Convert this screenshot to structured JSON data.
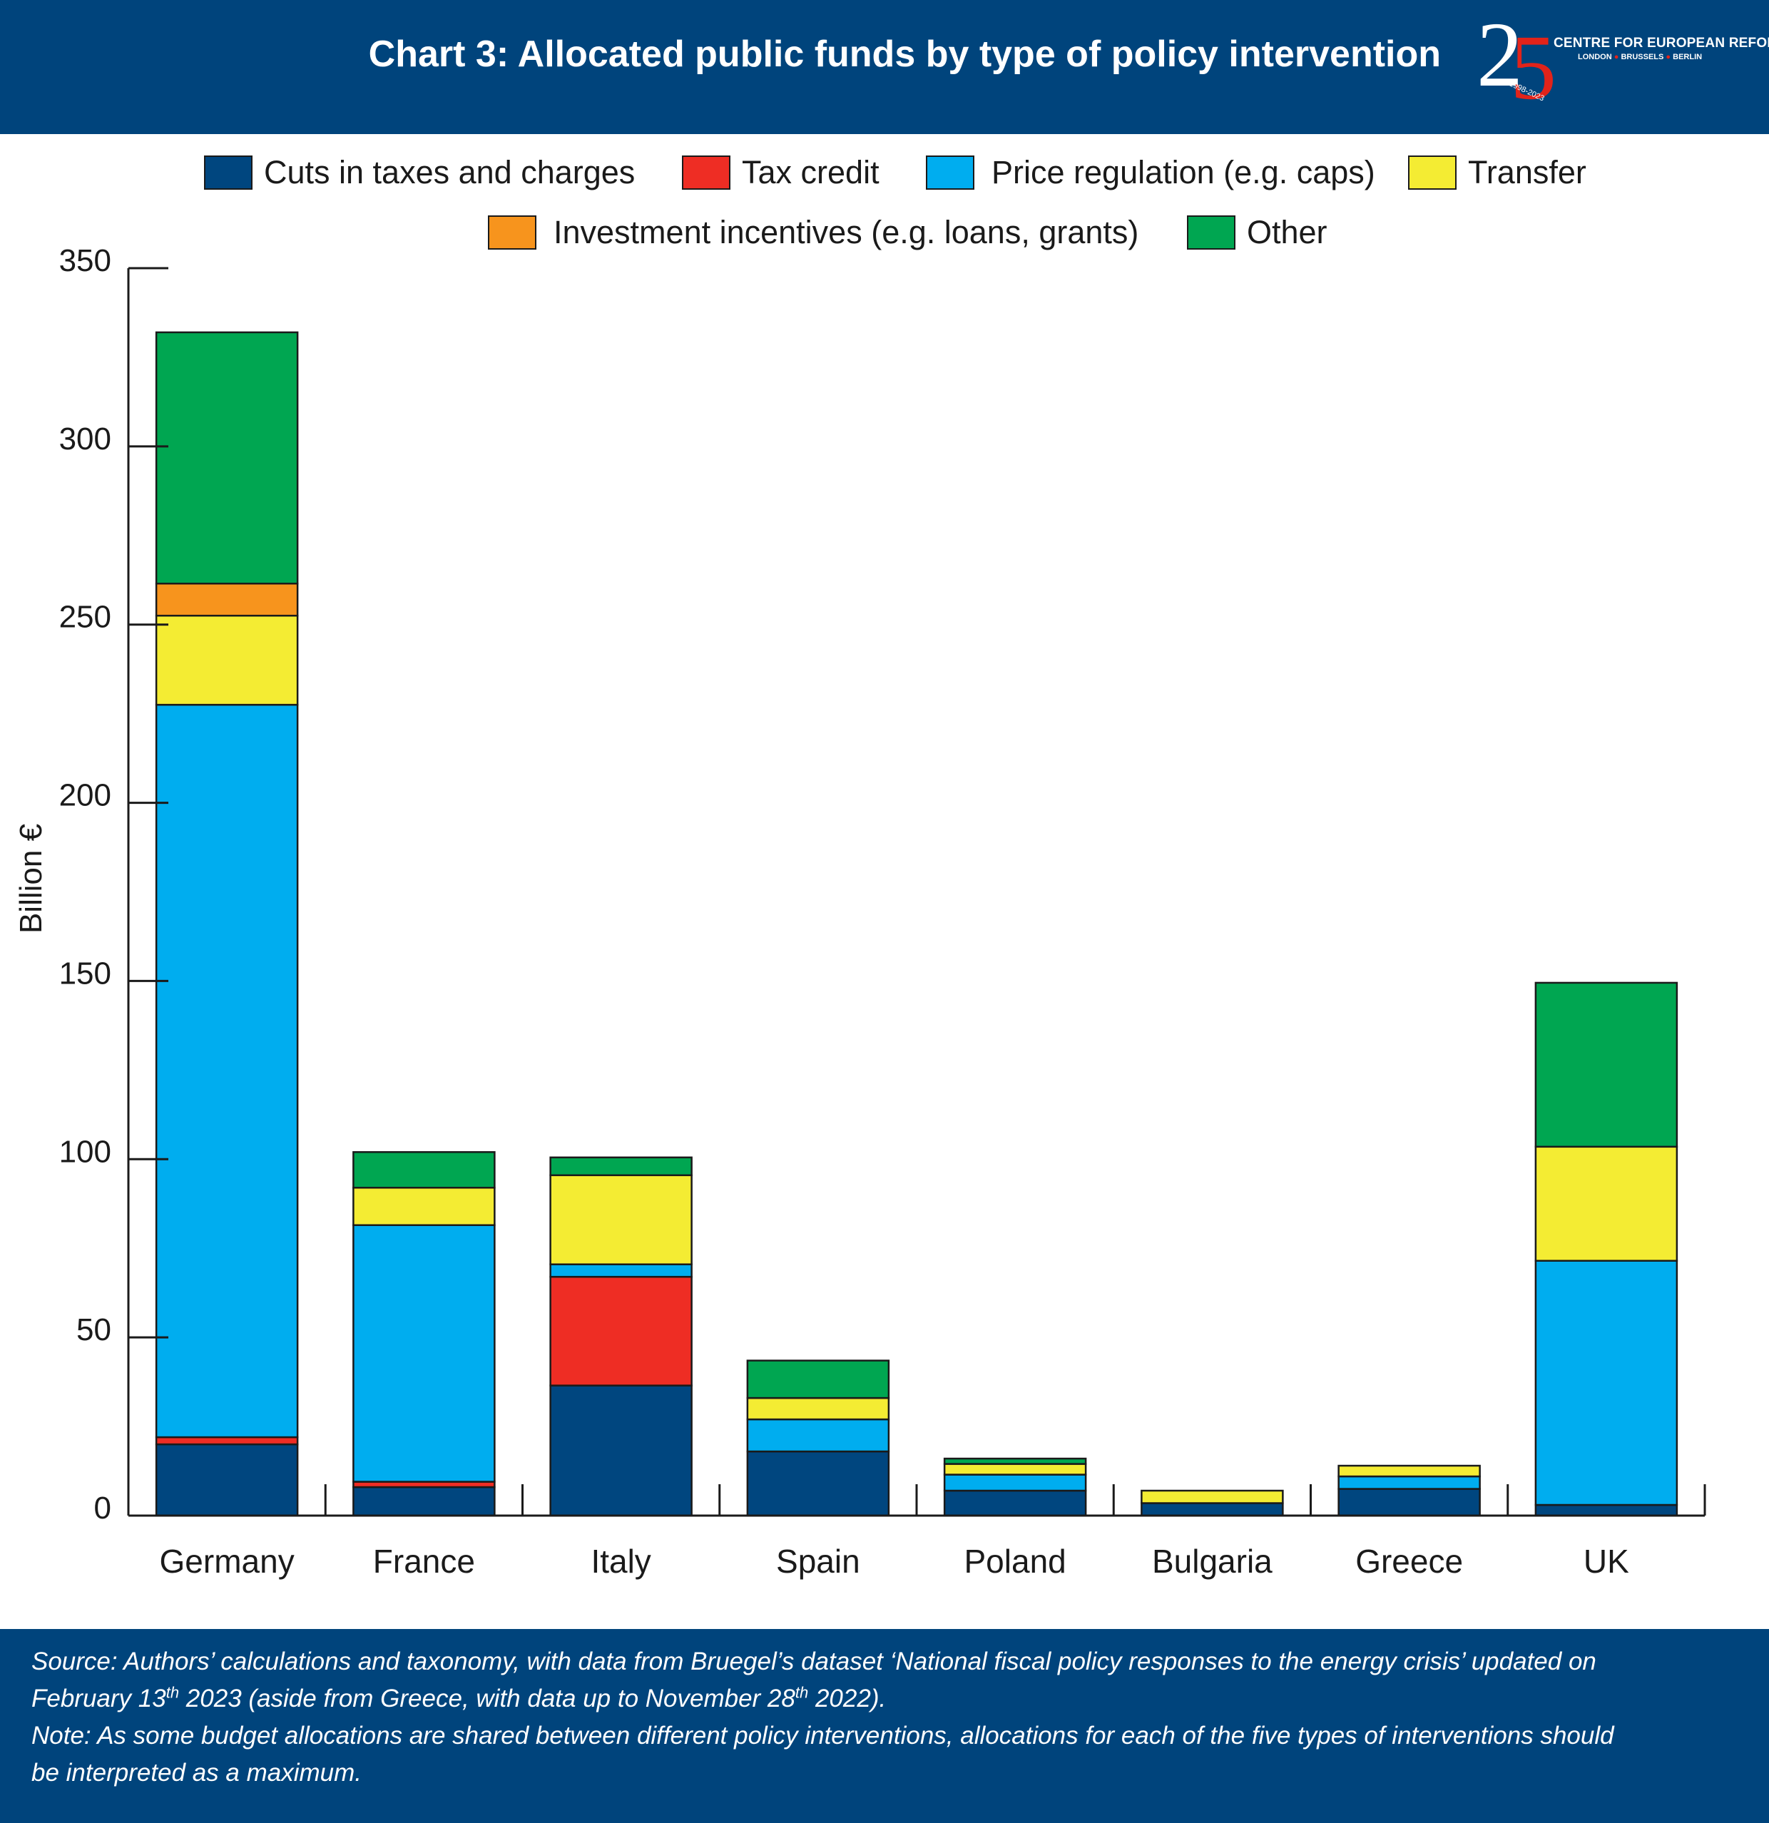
{
  "header": {
    "title": "Chart 3: Allocated public funds by type of policy intervention",
    "logo": {
      "number": "25",
      "name": "CENTRE FOR EUROPEAN REFORM",
      "cities": [
        "LONDON",
        "BRUSSELS",
        "BERLIN"
      ],
      "years": "1998-2023"
    }
  },
  "footer": {
    "source_a": "Source: Authors’ calculations and taxonomy, with data from Bruegel’s dataset ‘National fiscal policy responses to the energy crisis’ updated on",
    "source_b1": "February 13",
    "source_b_sup1": "th",
    "source_b2": " 2023 (aside from Greece, with data up to November 28",
    "source_b_sup2": "th",
    "source_b3": " 2022).",
    "note_a": "Note: As some budget allocations are shared between different policy interventions, allocations for each of the five types of interventions should",
    "note_b": "be interpreted as a maximum."
  },
  "colors": {
    "banner": "#00447c",
    "logo_accent": "#e2231a"
  },
  "chart_data": {
    "type": "bar",
    "stacked": true,
    "title": "Chart 3: Allocated public funds by type of policy intervention",
    "xlabel": "",
    "ylabel": "Billion €",
    "ylim": [
      0,
      350
    ],
    "yticks": [
      0,
      50,
      100,
      150,
      200,
      250,
      300,
      350
    ],
    "grid": false,
    "legend_position": "top",
    "categories": [
      "Germany",
      "France",
      "Italy",
      "Spain",
      "Poland",
      "Bulgaria",
      "Greece",
      "UK"
    ],
    "series": [
      {
        "name": "Cuts in taxes and charges",
        "color": "#00467f",
        "values": [
          20,
          8,
          36.5,
          18,
          7,
          3.5,
          7.5,
          3
        ]
      },
      {
        "name": "Tax credit",
        "color": "#ee2d24",
        "values": [
          2,
          1.5,
          30.5,
          0,
          0,
          0,
          0,
          0
        ]
      },
      {
        "name": "Price regulation (e.g. caps)",
        "color": "#00adef",
        "values": [
          205.5,
          72,
          3.5,
          9,
          4.5,
          0,
          3.5,
          68.5
        ]
      },
      {
        "name": "Transfer",
        "color": "#f4ec33",
        "values": [
          25,
          10.5,
          25,
          6,
          3,
          3.5,
          3,
          32
        ]
      },
      {
        "name": "Investment incentives (e.g. loans, grants)",
        "color": "#f7941d",
        "values": [
          9,
          0,
          0,
          0,
          0,
          0,
          0,
          0
        ]
      },
      {
        "name": "Other",
        "color": "#00a651",
        "values": [
          70.5,
          10,
          5,
          10.5,
          1.5,
          0,
          0,
          46
        ]
      }
    ]
  }
}
